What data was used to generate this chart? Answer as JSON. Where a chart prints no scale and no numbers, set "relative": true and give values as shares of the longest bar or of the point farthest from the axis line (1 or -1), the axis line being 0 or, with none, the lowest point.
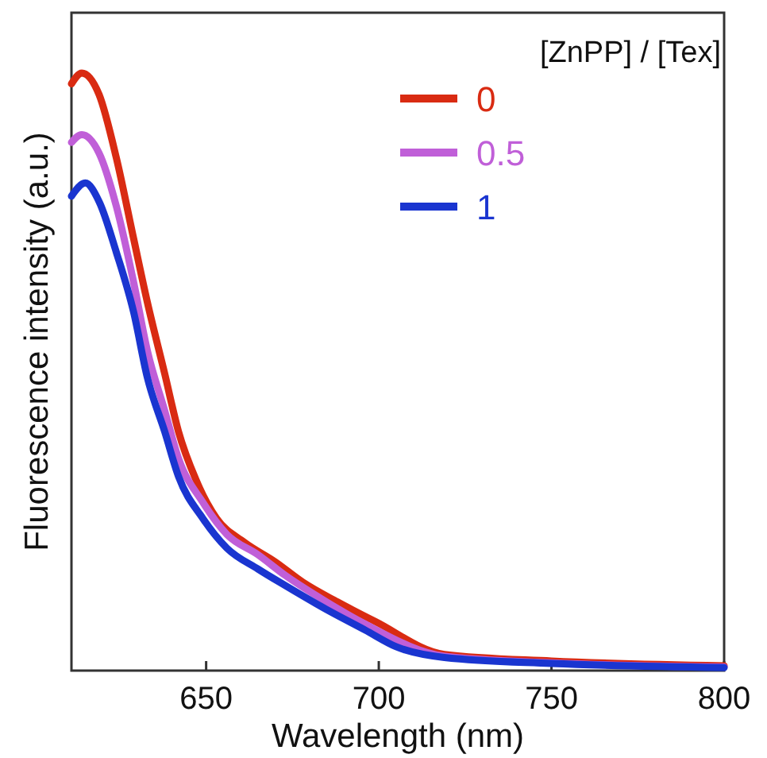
{
  "chart_data": {
    "type": "line",
    "relative": true,
    "xlabel": "Wavelength (nm)",
    "ylabel": "Fluorescence intensity (a.u.)",
    "legend_title": "[ZnPP] / [Tex]",
    "legend": "top right",
    "xlim": [
      611,
      800
    ],
    "xticks": [
      650,
      700,
      750,
      800
    ],
    "line_style": "solid",
    "marker": "none",
    "grid": false,
    "tick_labels": "x",
    "series": [
      {
        "name": "0",
        "color": "#d92b12",
        "x": [
          611,
          614,
          619,
          624,
          629,
          633,
          638,
          642,
          647,
          653,
          661,
          670,
          678,
          688,
          699,
          719,
          750,
          800
        ],
        "values": [
          0.982,
          1,
          0.964,
          0.858,
          0.723,
          0.616,
          0.497,
          0.4,
          0.32,
          0.255,
          0.215,
          0.182,
          0.148,
          0.115,
          0.082,
          0.027,
          0.016,
          0.008
        ]
      },
      {
        "name": "0.5",
        "color": "#c05fd8",
        "x": [
          611,
          614,
          619,
          624,
          629,
          633,
          638,
          642,
          649,
          656,
          665,
          673,
          684,
          696,
          719,
          750,
          800
        ],
        "values": [
          0.884,
          0.897,
          0.866,
          0.777,
          0.65,
          0.535,
          0.435,
          0.355,
          0.282,
          0.228,
          0.194,
          0.159,
          0.118,
          0.078,
          0.024,
          0.013,
          0.006
        ]
      },
      {
        "name": "1",
        "color": "#1a35d0",
        "x": [
          611,
          615,
          619,
          624,
          629,
          633,
          638,
          642,
          649,
          656,
          665,
          673,
          684,
          696,
          705,
          719,
          750,
          800
        ],
        "values": [
          0.794,
          0.816,
          0.785,
          0.7,
          0.6,
          0.49,
          0.4,
          0.325,
          0.255,
          0.205,
          0.17,
          0.142,
          0.105,
          0.068,
          0.04,
          0.022,
          0.012,
          0.005
        ]
      }
    ]
  }
}
